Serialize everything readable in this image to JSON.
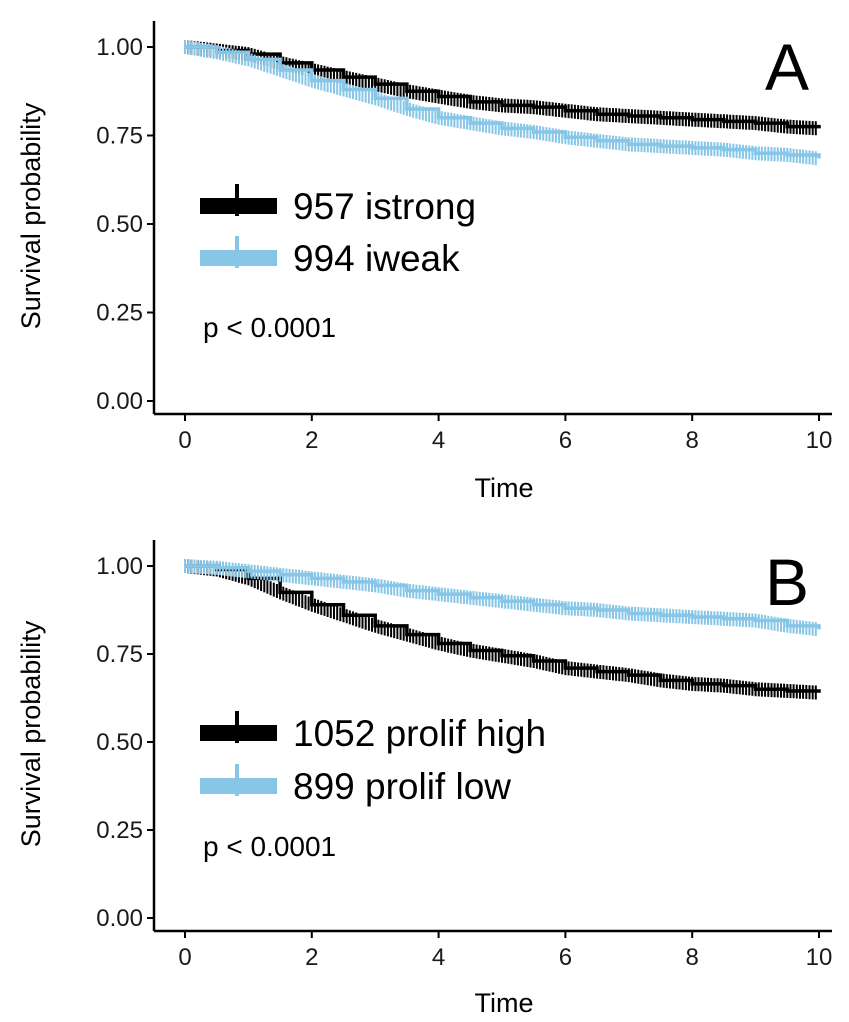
{
  "chart_data": [
    {
      "type": "line",
      "panel_label": "A",
      "xlabel": "Time",
      "ylabel": "Survival probability",
      "xlim": [
        0,
        10
      ],
      "ylim": [
        0,
        1
      ],
      "x_ticks": [
        "0",
        "2",
        "4",
        "6",
        "8",
        "10"
      ],
      "y_ticks": [
        "0.00",
        "0.25",
        "0.50",
        "0.75",
        "1.00"
      ],
      "grid": false,
      "legend_placement": "center-left",
      "annotation": "p < 0.0001",
      "series": [
        {
          "name": "957 istrong",
          "color": "#000000",
          "points": [
            [
              0,
              1.0
            ],
            [
              0.5,
              0.99
            ],
            [
              1.0,
              0.98
            ],
            [
              1.5,
              0.955
            ],
            [
              2.0,
              0.935
            ],
            [
              2.5,
              0.915
            ],
            [
              3.0,
              0.895
            ],
            [
              3.5,
              0.875
            ],
            [
              4.0,
              0.86
            ],
            [
              4.5,
              0.845
            ],
            [
              5.0,
              0.835
            ],
            [
              5.5,
              0.83
            ],
            [
              6.0,
              0.82
            ],
            [
              6.5,
              0.81
            ],
            [
              7.0,
              0.805
            ],
            [
              7.5,
              0.8
            ],
            [
              8.0,
              0.795
            ],
            [
              8.5,
              0.79
            ],
            [
              9.0,
              0.785
            ],
            [
              9.5,
              0.775
            ],
            [
              10.0,
              0.77
            ]
          ]
        },
        {
          "name": "994 iweak",
          "color": "#87c6e6",
          "points": [
            [
              0,
              1.0
            ],
            [
              0.5,
              0.985
            ],
            [
              1.0,
              0.965
            ],
            [
              1.5,
              0.935
            ],
            [
              2.0,
              0.905
            ],
            [
              2.5,
              0.88
            ],
            [
              3.0,
              0.855
            ],
            [
              3.5,
              0.825
            ],
            [
              4.0,
              0.8
            ],
            [
              4.5,
              0.785
            ],
            [
              5.0,
              0.77
            ],
            [
              5.5,
              0.76
            ],
            [
              6.0,
              0.745
            ],
            [
              6.5,
              0.735
            ],
            [
              7.0,
              0.725
            ],
            [
              7.5,
              0.72
            ],
            [
              8.0,
              0.715
            ],
            [
              8.5,
              0.71
            ],
            [
              9.0,
              0.7
            ],
            [
              9.5,
              0.695
            ],
            [
              10.0,
              0.685
            ]
          ]
        }
      ]
    },
    {
      "type": "line",
      "panel_label": "B",
      "xlabel": "Time",
      "ylabel": "Survival probability",
      "xlim": [
        0,
        10
      ],
      "ylim": [
        0,
        1
      ],
      "x_ticks": [
        "0",
        "2",
        "4",
        "6",
        "8",
        "10"
      ],
      "y_ticks": [
        "0.00",
        "0.25",
        "0.50",
        "0.75",
        "1.00"
      ],
      "grid": false,
      "legend_placement": "center-left",
      "annotation": "p < 0.0001",
      "series": [
        {
          "name": "1052 prolif high",
          "color": "#000000",
          "points": [
            [
              0,
              1.0
            ],
            [
              0.5,
              0.99
            ],
            [
              1.0,
              0.965
            ],
            [
              1.5,
              0.925
            ],
            [
              2.0,
              0.89
            ],
            [
              2.5,
              0.86
            ],
            [
              3.0,
              0.83
            ],
            [
              3.5,
              0.805
            ],
            [
              4.0,
              0.78
            ],
            [
              4.5,
              0.76
            ],
            [
              5.0,
              0.745
            ],
            [
              5.5,
              0.73
            ],
            [
              6.0,
              0.71
            ],
            [
              6.5,
              0.7
            ],
            [
              7.0,
              0.69
            ],
            [
              7.5,
              0.675
            ],
            [
              8.0,
              0.665
            ],
            [
              8.5,
              0.66
            ],
            [
              9.0,
              0.65
            ],
            [
              9.5,
              0.645
            ],
            [
              10.0,
              0.64
            ]
          ]
        },
        {
          "name": " 899 prolif low",
          "color": "#87c6e6",
          "points": [
            [
              0,
              1.0
            ],
            [
              0.5,
              0.995
            ],
            [
              1.0,
              0.985
            ],
            [
              1.5,
              0.975
            ],
            [
              2.0,
              0.965
            ],
            [
              2.5,
              0.955
            ],
            [
              3.0,
              0.945
            ],
            [
              3.5,
              0.93
            ],
            [
              4.0,
              0.92
            ],
            [
              4.5,
              0.91
            ],
            [
              5.0,
              0.9
            ],
            [
              5.5,
              0.89
            ],
            [
              6.0,
              0.88
            ],
            [
              6.5,
              0.875
            ],
            [
              7.0,
              0.865
            ],
            [
              7.5,
              0.86
            ],
            [
              8.0,
              0.855
            ],
            [
              8.5,
              0.85
            ],
            [
              9.0,
              0.845
            ],
            [
              9.5,
              0.83
            ],
            [
              10.0,
              0.82
            ]
          ]
        }
      ]
    }
  ]
}
